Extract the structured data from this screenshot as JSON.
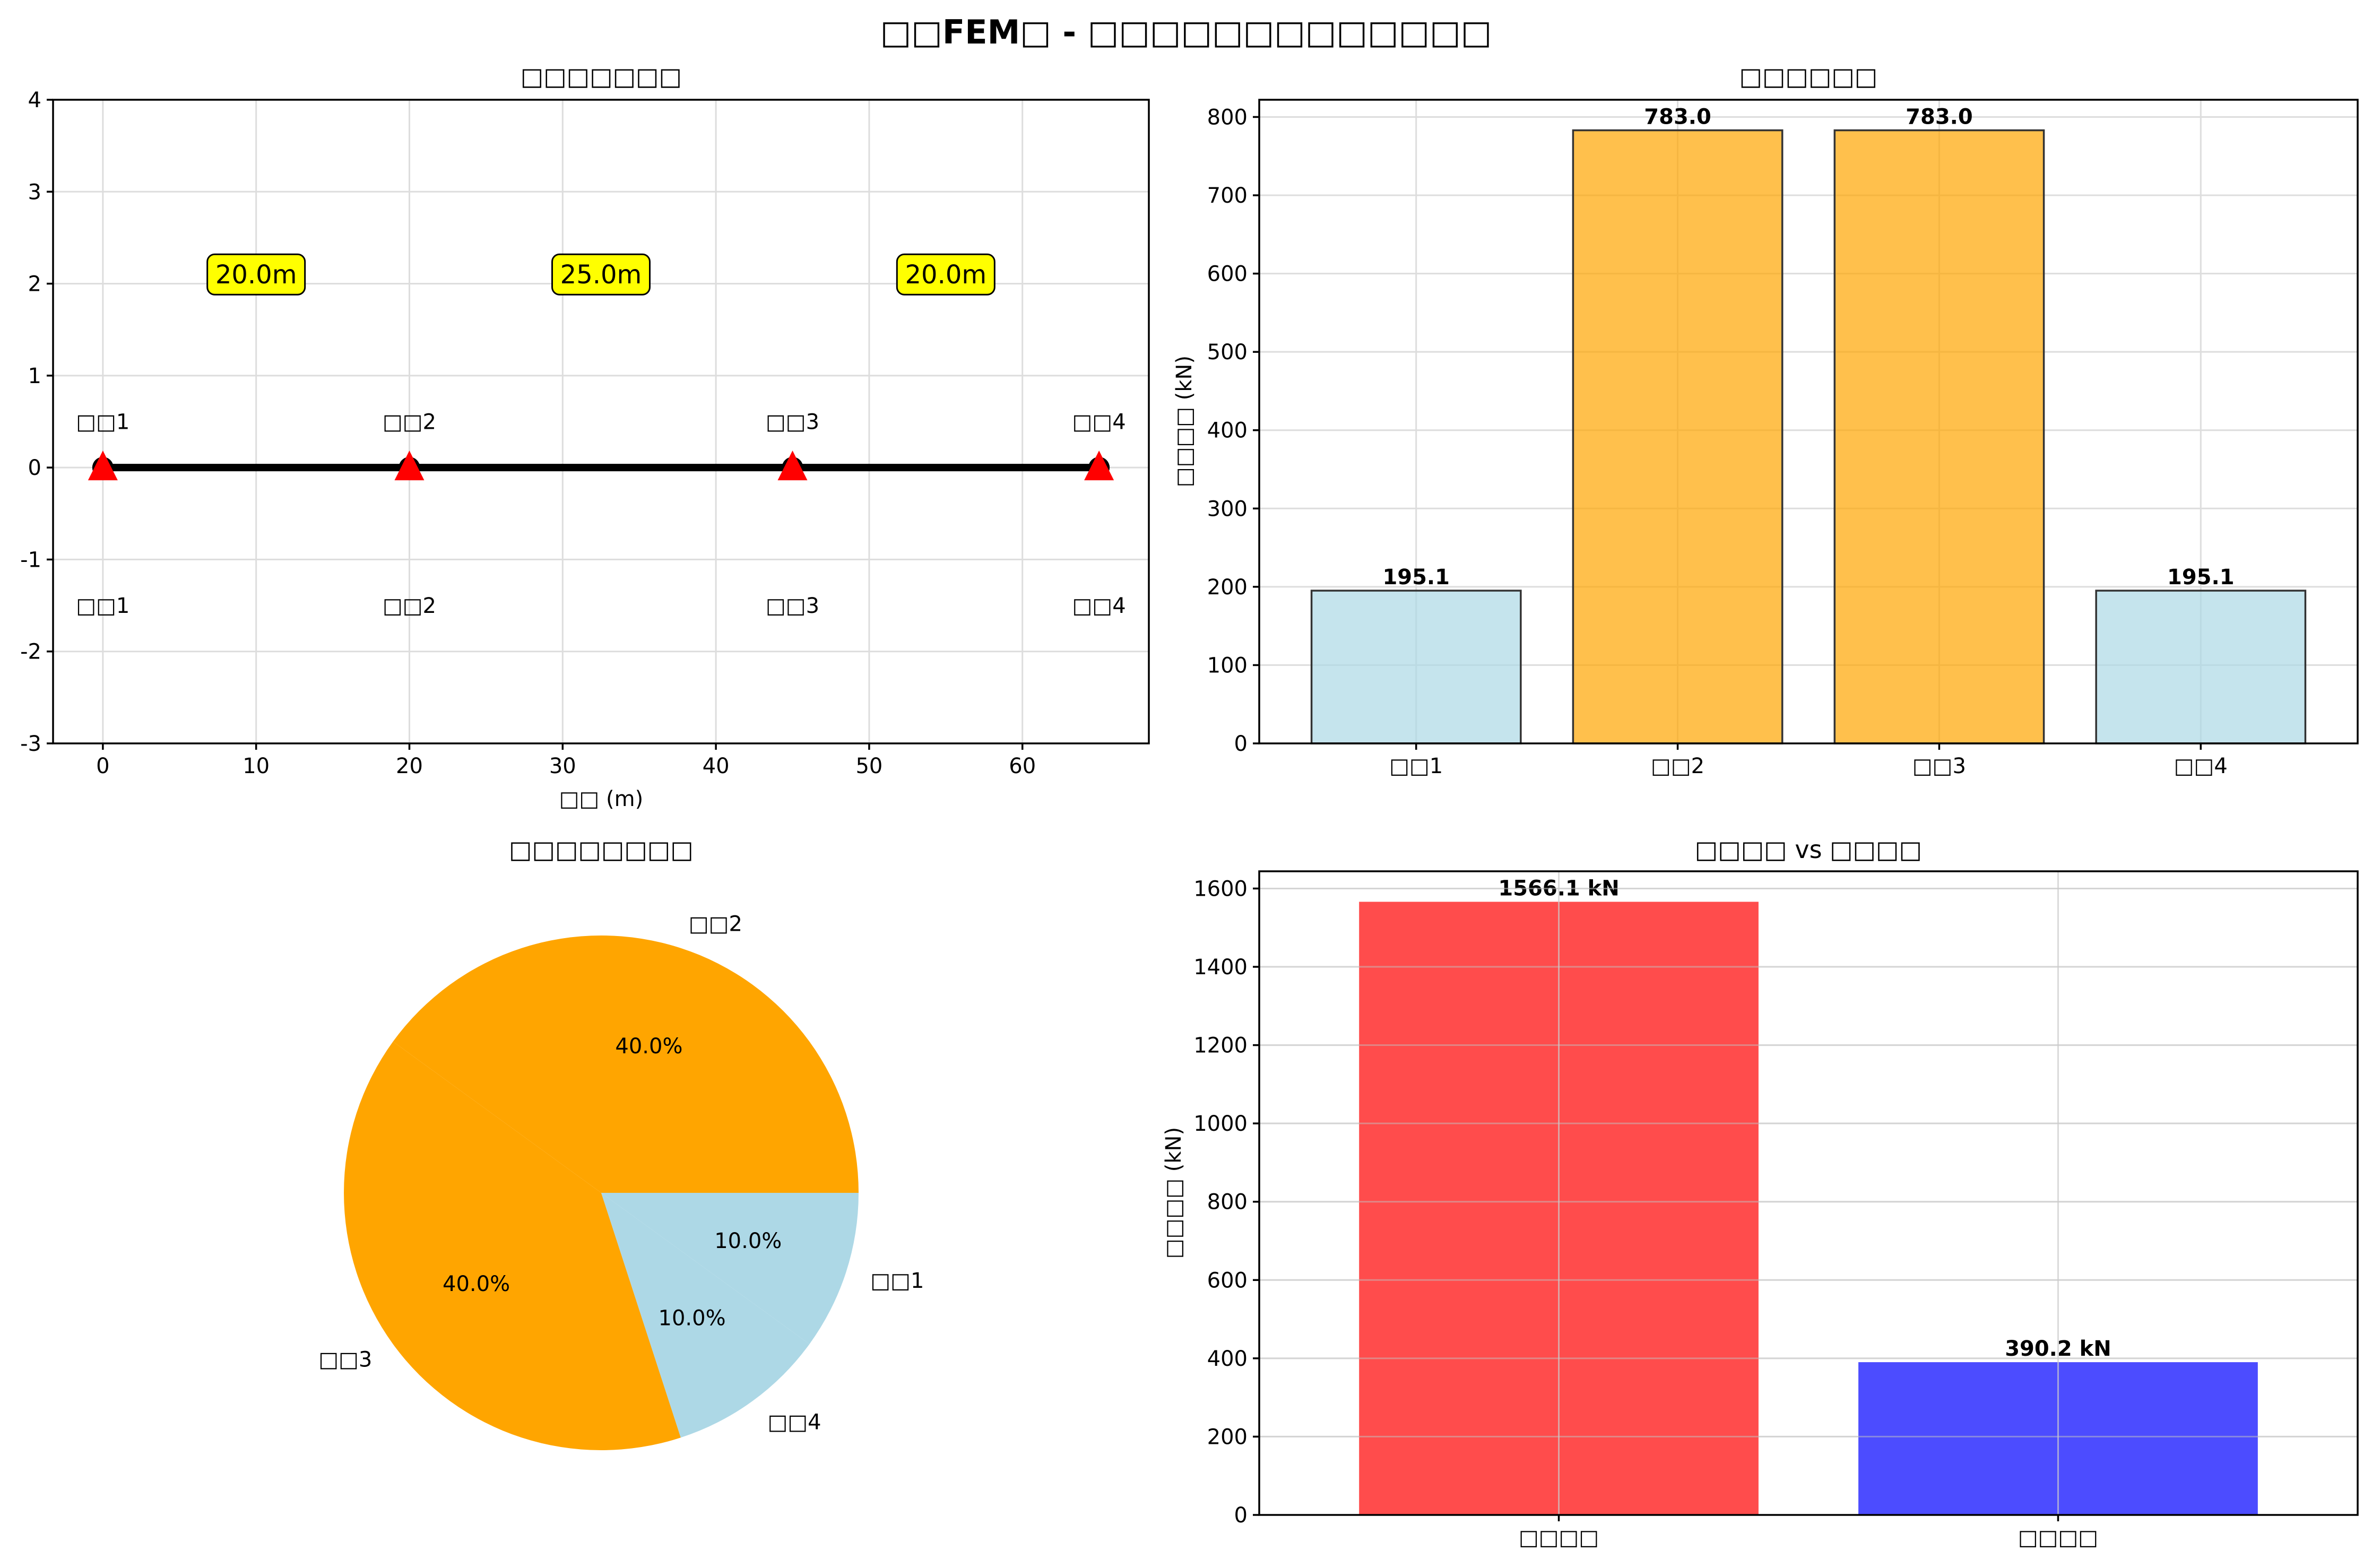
{
  "figure": {
    "title": "□□FEM□ - □□□□□□□□□□□□□"
  },
  "colors": {
    "orange": "#FFA500",
    "light_blue": "#ADD8E6",
    "red": "#FF0000",
    "blue": "#0000FF",
    "support_marker": "#FF0000"
  },
  "chart_data": [
    {
      "id": "geometry",
      "type": "line",
      "title": "□□□□□□□",
      "xlabel": "□□ (m)",
      "ylabel": "",
      "xlim": [
        -3.25,
        68.25
      ],
      "ylim": [
        -3,
        4
      ],
      "xticks": [
        0,
        10,
        20,
        30,
        40,
        50,
        60
      ],
      "yticks": [
        -3,
        -2,
        -1,
        0,
        1,
        2,
        3,
        4
      ],
      "grid": true,
      "beam": {
        "x": [
          0,
          65
        ],
        "y": [
          0,
          0
        ]
      },
      "supports": [
        {
          "x": 0,
          "y": 0,
          "label_top": "□□1",
          "label_bottom": "□□1"
        },
        {
          "x": 20,
          "y": 0,
          "label_top": "□□2",
          "label_bottom": "□□2"
        },
        {
          "x": 45,
          "y": 0,
          "label_top": "□□3",
          "label_bottom": "□□3"
        },
        {
          "x": 65,
          "y": 0,
          "label_top": "□□4",
          "label_bottom": "□□4"
        }
      ],
      "span_labels": [
        {
          "x": 10,
          "y": 2.1,
          "text": "20.0m"
        },
        {
          "x": 32.5,
          "y": 2.1,
          "text": "25.0m"
        },
        {
          "x": 55,
          "y": 2.1,
          "text": "20.0m"
        }
      ]
    },
    {
      "id": "reactions",
      "type": "bar",
      "title": "□□□□□□",
      "xlabel": "",
      "ylabel": "□□□□ (kN)",
      "categories": [
        "□□1",
        "□□2",
        "□□3",
        "□□4"
      ],
      "values": [
        195.1,
        783.0,
        783.0,
        195.1
      ],
      "value_labels": [
        "195.1",
        "783.0",
        "783.0",
        "195.1"
      ],
      "bar_colors": [
        "#ADD8E6",
        "#FFA500",
        "#FFA500",
        "#ADD8E6"
      ],
      "ylim": [
        0,
        822
      ],
      "yticks": [
        0,
        100,
        200,
        300,
        400,
        500,
        600,
        700,
        800
      ],
      "grid": true
    },
    {
      "id": "distribution",
      "type": "pie",
      "title": "□□□□□□□□",
      "slices": [
        {
          "label": "□□1",
          "value": 10.0,
          "pct_label": "10.0%",
          "color": "#ADD8E6"
        },
        {
          "label": "□□2",
          "value": 40.0,
          "pct_label": "40.0%",
          "color": "#FFA500"
        },
        {
          "label": "□□3",
          "value": 40.0,
          "pct_label": "40.0%",
          "color": "#FFA500"
        },
        {
          "label": "□□4",
          "value": 10.0,
          "pct_label": "10.0%",
          "color": "#ADD8E6"
        }
      ]
    },
    {
      "id": "comparison",
      "type": "bar",
      "title": "□□□□ vs □□□□",
      "xlabel": "",
      "ylabel": "□□□□ (kN)",
      "categories": [
        "□□□□",
        "□□□□"
      ],
      "values": [
        1566.1,
        390.2
      ],
      "value_labels": [
        "1566.1 kN",
        "390.2 kN"
      ],
      "bar_colors": [
        "#FF0000",
        "#0000FF"
      ],
      "ylim": [
        0,
        1644
      ],
      "yticks": [
        0,
        200,
        400,
        600,
        800,
        1000,
        1200,
        1400,
        1600
      ],
      "grid": true
    }
  ]
}
